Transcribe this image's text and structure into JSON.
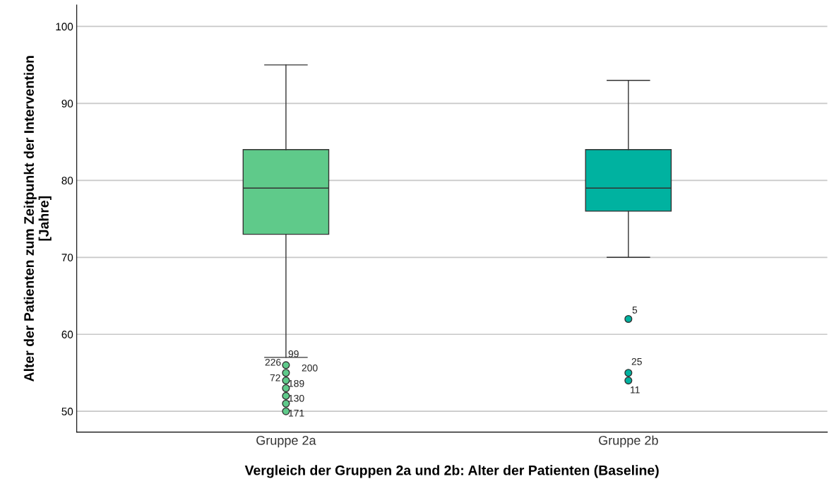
{
  "chart_data": {
    "type": "box",
    "xlabel": "Vergleich der Gruppen 2a und 2b: Alter der Patienten (Baseline)",
    "ylabel": "Alter der Patienten zum Zeitpunkt der Intervention\n[Jahre]",
    "categories": [
      "Gruppe 2a",
      "Gruppe 2b"
    ],
    "colors": [
      "#5fca8a",
      "#00b2a0"
    ],
    "boxes": [
      {
        "low": 57,
        "q1": 73,
        "median": 79,
        "q3": 84,
        "high": 95,
        "outliers": [
          56,
          55,
          54,
          53,
          52,
          51,
          50
        ]
      },
      {
        "low": 70,
        "q1": 76,
        "median": 79,
        "q3": 84,
        "high": 93,
        "outliers": [
          62,
          55,
          54
        ]
      }
    ],
    "ylim": [
      47.3,
      102.8
    ],
    "yticks": [
      50,
      60,
      70,
      80,
      90,
      100
    ],
    "grid": "y",
    "annotations": [
      "99",
      "226",
      "200",
      "72",
      "189",
      "130",
      "171",
      "5",
      "25",
      "11"
    ]
  }
}
